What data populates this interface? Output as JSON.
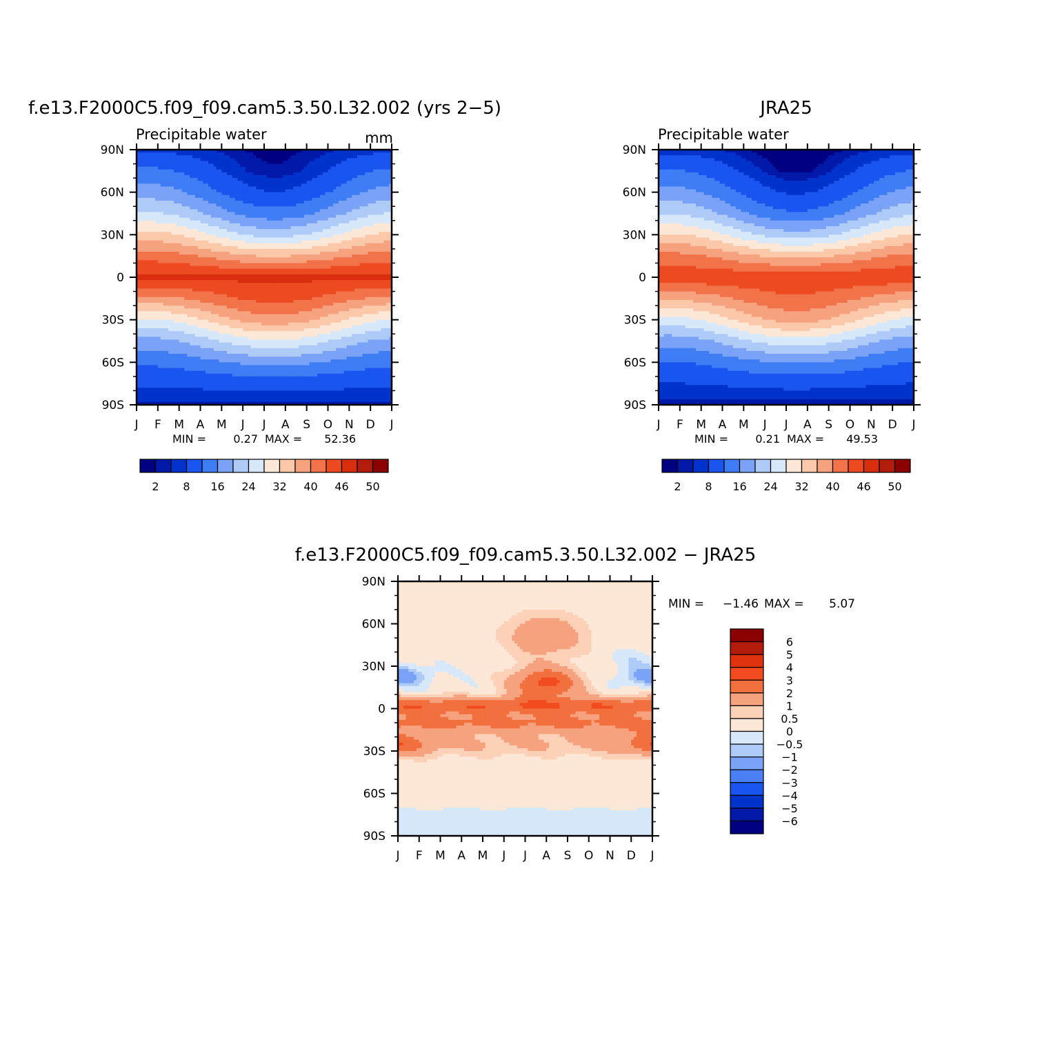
{
  "chart_data": [
    {
      "type": "heatmap",
      "title": "f.e13.F2000C5.f09_f09.cam5.3.50.L32.002 (yrs 2−5)",
      "subtitle": "Precipitable water",
      "units": "mm",
      "x_ticks": [
        "J",
        "F",
        "M",
        "A",
        "M",
        "J",
        "J",
        "A",
        "S",
        "O",
        "N",
        "D",
        "J"
      ],
      "y_ticks": [
        "90N",
        "60N",
        "30N",
        "0",
        "30S",
        "60S",
        "90S"
      ],
      "stats": {
        "min_label": "MIN =",
        "min": "0.27",
        "max_label": "MAX =",
        "max": "52.36"
      },
      "colorbar": {
        "orientation": "horizontal",
        "tick_labels": [
          "2",
          "8",
          "16",
          "24",
          "32",
          "40",
          "46",
          "50"
        ],
        "colors": [
          "#000080",
          "#0019a8",
          "#0033cc",
          "#1a55f0",
          "#3f7df5",
          "#7aa3f7",
          "#aecbf7",
          "#d6e8fa",
          "#fde8d8",
          "#fbc8aa",
          "#f7a27e",
          "#f2724a",
          "#ee4a22",
          "#d92e0e",
          "#b31c0a",
          "#8b0000"
        ]
      },
      "climatology": {
        "lat": [
          90,
          75,
          60,
          45,
          30,
          15,
          0,
          -15,
          -30,
          -45,
          -60,
          -75,
          -90
        ],
        "seasonal_amp": [
          -2.5,
          -7,
          -9,
          -10,
          -10,
          -6,
          0,
          6,
          10,
          8,
          4,
          1,
          0
        ],
        "base": [
          2,
          5,
          9,
          15,
          24,
          35,
          45,
          38,
          29,
          19,
          11,
          5,
          1.5
        ]
      }
    },
    {
      "type": "heatmap",
      "title": "JRA25",
      "subtitle": "Precipitable water",
      "x_ticks": [
        "J",
        "F",
        "M",
        "A",
        "M",
        "J",
        "J",
        "A",
        "S",
        "O",
        "N",
        "D",
        "J"
      ],
      "y_ticks": [
        "90N",
        "60N",
        "30N",
        "0",
        "30S",
        "60S",
        "90S"
      ],
      "stats": {
        "min_label": "MIN =",
        "min": "0.21",
        "max_label": "MAX =",
        "max": "49.53"
      },
      "colorbar": {
        "orientation": "horizontal",
        "tick_labels": [
          "2",
          "8",
          "16",
          "24",
          "32",
          "40",
          "46",
          "50"
        ],
        "colors": [
          "#000080",
          "#0019a8",
          "#0033cc",
          "#1a55f0",
          "#3f7df5",
          "#7aa3f7",
          "#aecbf7",
          "#d6e8fa",
          "#fde8d8",
          "#fbc8aa",
          "#f7a27e",
          "#f2724a",
          "#ee4a22",
          "#d92e0e",
          "#b31c0a",
          "#8b0000"
        ]
      },
      "climatology": {
        "lat": [
          90,
          75,
          60,
          45,
          30,
          15,
          0,
          -15,
          -30,
          -45,
          -60,
          -75,
          -90
        ],
        "seasonal_amp": [
          -2.5,
          -7,
          -9,
          -10,
          -10,
          -6,
          0,
          6,
          10,
          8,
          4,
          1,
          0
        ],
        "base": [
          1.5,
          4.5,
          8.5,
          14,
          23,
          34,
          43,
          36,
          28,
          18,
          10,
          4.5,
          1.2
        ]
      }
    },
    {
      "type": "heatmap",
      "title": "f.e13.F2000C5.f09_f09.cam5.3.50.L32.002 − JRA25",
      "x_ticks": [
        "J",
        "F",
        "M",
        "A",
        "M",
        "J",
        "J",
        "A",
        "S",
        "O",
        "N",
        "D",
        "J"
      ],
      "y_ticks": [
        "90N",
        "60N",
        "30N",
        "0",
        "30S",
        "60S",
        "90S"
      ],
      "stats": {
        "min_label": "MIN =",
        "min": "−1.46",
        "max_label": "MAX =",
        "max": "5.07"
      },
      "colorbar": {
        "orientation": "vertical",
        "tick_labels": [
          "6",
          "5",
          "4",
          "3",
          "2",
          "1",
          "0.5",
          "0",
          "−0.5",
          "−1",
          "−2",
          "−3",
          "−4",
          "−5",
          "−6"
        ],
        "colors": [
          "#8b0000",
          "#b31c0a",
          "#e0320c",
          "#f24b1f",
          "#f26f3e",
          "#f7a27e",
          "#fdd0b8",
          "#fde8d8",
          "#d6e8fa",
          "#aecbf7",
          "#7aa3f7",
          "#4a7ff5",
          "#1a55f0",
          "#0033cc",
          "#0019a8",
          "#000080"
        ]
      }
    }
  ]
}
